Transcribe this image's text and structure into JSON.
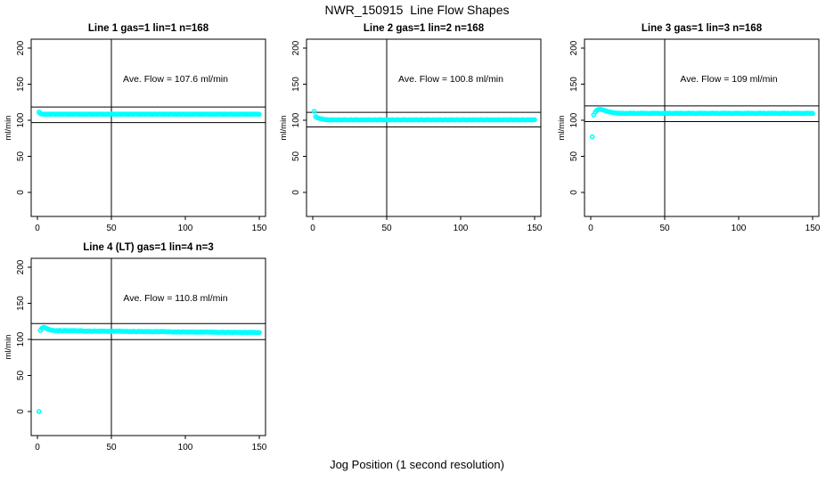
{
  "figure": {
    "title": "NWR_150915  Line Flow Shapes",
    "xlabel": "Jog Position (1 second resolution)",
    "background_color": "#ffffff",
    "axis_color": "#000000"
  },
  "chart_data": {
    "type": "scatter",
    "title": "NWR_150915  Line Flow Shapes",
    "xlabel": "Jog Position (1 second resolution)",
    "ylabel": "ml/min",
    "point_color": "#00FFFF",
    "axis_color": "#000000",
    "xlim": [
      0,
      150
    ],
    "ylim": [
      0,
      200
    ],
    "xticks": [
      0,
      50,
      100,
      150
    ],
    "yticks": [
      0,
      50,
      100,
      150,
      200
    ],
    "grid": false,
    "legend": "none",
    "vline_x": 50,
    "panels": [
      {
        "title": "Line 1 gas=1 lin=1 n=168",
        "annotation": "Ave. Flow =  107.6  ml/min",
        "ave_flow": 107.6,
        "ref_lines": [
          118.4,
          96.8
        ],
        "series": {
          "name": "Line 1 flow",
          "x_start": 1,
          "x_step": 1,
          "y": [
            111.2,
            109.3,
            108.6,
            108.3,
            108.5,
            108.2,
            108.7,
            108.4,
            108.3,
            108.6,
            108.6,
            108.3,
            108.5,
            108.2,
            108.7,
            108.4,
            108.3,
            108.6,
            108.6,
            108.3,
            108.5,
            108.2,
            108.7,
            108.4,
            108.3,
            108.6,
            108.6,
            108.3,
            108.5,
            108.2,
            108.7,
            108.4,
            108.3,
            108.6,
            108.6,
            108.3,
            108.5,
            108.2,
            108.7,
            108.4,
            108.3,
            108.6,
            108.6,
            108.3,
            108.5,
            108.2,
            108.7,
            108.4,
            108.3,
            108.6,
            108.6,
            108.3,
            108.5,
            108.2,
            108.7,
            108.4,
            108.3,
            108.6,
            108.6,
            108.3,
            108.5,
            108.2,
            108.7,
            108.4,
            108.3,
            108.6,
            108.6,
            108.3,
            108.5,
            108.2,
            108.7,
            108.4,
            108.3,
            108.6,
            108.6,
            108.3,
            108.5,
            108.2,
            108.7,
            108.4,
            108.3,
            108.6,
            108.6,
            108.3,
            108.5,
            108.2,
            108.7,
            108.4,
            108.3,
            108.6,
            108.6,
            108.3,
            108.5,
            108.2,
            108.7,
            108.4,
            108.3,
            108.6,
            108.6,
            108.3,
            108.5,
            108.2,
            108.7,
            108.4,
            108.3,
            108.6,
            108.6,
            108.3,
            108.5,
            108.2,
            108.7,
            108.4,
            108.3,
            108.6,
            108.6,
            108.3,
            108.5,
            108.2,
            108.7,
            108.4,
            108.3,
            108.6,
            108.6,
            108.3,
            108.5,
            108.2,
            108.7,
            108.4,
            108.3,
            108.6,
            108.6,
            108.3,
            108.5,
            108.2,
            108.7,
            108.4,
            108.3,
            108.6,
            108.6,
            108.3,
            108.5,
            108.2,
            108.7,
            108.4,
            108.3,
            108.6,
            108.6,
            108.3,
            108.5,
            108.2
          ]
        }
      },
      {
        "title": "Line 2 gas=1 lin=2 n=168",
        "annotation": "Ave. Flow =  100.8  ml/min",
        "ave_flow": 100.8,
        "ref_lines": [
          110.9,
          90.7
        ],
        "series": {
          "name": "Line 2 flow",
          "x_start": 1,
          "x_step": 1,
          "y": [
            112.4,
            105.2,
            103.6,
            102.8,
            102.2,
            101.8,
            101.4,
            101.1,
            100.9,
            100.7,
            100.4,
            100.8,
            100.5,
            100.9,
            100.6,
            100.4,
            100.7,
            100.7,
            100.4,
            100.8,
            100.5,
            100.9,
            100.6,
            100.4,
            100.7,
            100.7,
            100.4,
            100.8,
            100.5,
            100.9,
            100.6,
            100.4,
            100.7,
            100.7,
            100.4,
            100.8,
            100.5,
            100.9,
            100.6,
            100.4,
            100.7,
            100.7,
            100.4,
            100.8,
            100.5,
            100.9,
            100.6,
            100.4,
            100.7,
            100.7,
            100.4,
            100.8,
            100.5,
            100.9,
            100.6,
            100.4,
            100.7,
            100.7,
            100.4,
            100.8,
            100.5,
            100.9,
            100.6,
            100.4,
            100.7,
            100.7,
            100.4,
            100.8,
            100.5,
            100.9,
            100.6,
            100.4,
            100.7,
            100.7,
            100.4,
            100.8,
            100.5,
            100.9,
            100.6,
            100.4,
            100.7,
            100.7,
            100.4,
            100.8,
            100.5,
            100.9,
            100.6,
            100.4,
            100.7,
            100.7,
            100.4,
            100.8,
            100.5,
            100.9,
            100.6,
            100.4,
            100.7,
            100.7,
            100.4,
            100.8,
            100.5,
            100.9,
            100.6,
            100.4,
            100.7,
            100.7,
            100.4,
            100.8,
            100.5,
            100.9,
            100.6,
            100.4,
            100.7,
            100.7,
            100.4,
            100.8,
            100.5,
            100.9,
            100.6,
            100.4,
            100.7,
            100.7,
            100.4,
            100.8,
            100.5,
            100.9,
            100.6,
            100.4,
            100.7,
            100.7,
            100.4,
            100.8,
            100.5,
            100.9,
            100.6,
            100.4,
            100.7,
            100.7,
            100.4,
            100.8,
            100.5,
            100.9,
            100.6,
            100.4,
            100.7,
            100.7,
            100.4,
            100.8,
            100.5,
            100.9
          ]
        }
      },
      {
        "title": "Line 3 gas=1 lin=3 n=168",
        "annotation": "Ave. Flow =  109  ml/min",
        "ave_flow": 109,
        "ref_lines": [
          119.9,
          98.1
        ],
        "series": {
          "name": "Line 3 flow",
          "x_start": 1,
          "x_step": 1,
          "y": [
            77.2,
            107.4,
            111.2,
            113.6,
            114.8,
            115.1,
            114.9,
            114.4,
            113.8,
            113.1,
            112.5,
            111.9,
            111.4,
            111.0,
            110.6,
            110.3,
            110.1,
            109.9,
            109.7,
            109.4,
            109.8,
            109.5,
            109.3,
            109.6,
            109.4,
            109.7,
            109.7,
            109.4,
            109.8,
            109.5,
            109.3,
            109.6,
            109.4,
            109.7,
            109.7,
            109.4,
            109.8,
            109.5,
            109.3,
            109.6,
            109.4,
            109.7,
            109.7,
            109.4,
            109.8,
            109.5,
            109.3,
            109.6,
            109.4,
            109.7,
            109.7,
            109.4,
            109.8,
            109.5,
            109.3,
            109.6,
            109.4,
            109.7,
            109.7,
            109.4,
            109.8,
            109.5,
            109.3,
            109.6,
            109.4,
            109.7,
            109.7,
            109.4,
            109.8,
            109.5,
            109.3,
            109.6,
            109.4,
            109.7,
            109.7,
            109.4,
            109.8,
            109.5,
            109.3,
            109.6,
            109.4,
            109.7,
            109.7,
            109.4,
            109.8,
            109.5,
            109.3,
            109.6,
            109.4,
            109.7,
            109.7,
            109.4,
            109.8,
            109.5,
            109.3,
            109.6,
            109.4,
            109.7,
            109.7,
            109.4,
            109.8,
            109.5,
            109.3,
            109.6,
            109.4,
            109.7,
            109.7,
            109.4,
            109.8,
            109.5,
            109.3,
            109.6,
            109.4,
            109.7,
            109.7,
            109.4,
            109.8,
            109.5,
            109.3,
            109.6,
            109.4,
            109.7,
            109.7,
            109.4,
            109.8,
            109.5,
            109.3,
            109.6,
            109.4,
            109.7,
            109.7,
            109.4,
            109.8,
            109.5,
            109.3,
            109.6,
            109.4,
            109.7,
            109.7,
            109.4,
            109.8,
            109.5,
            109.3,
            109.6,
            109.4,
            109.7,
            109.7,
            109.4,
            109.8,
            109.5
          ]
        }
      },
      {
        "title": "Line 4 (LT) gas=1 lin=4 n=3",
        "annotation": "Ave. Flow =  110.8  ml/min",
        "ave_flow": 110.8,
        "ref_lines": [
          121.9,
          99.7
        ],
        "series": {
          "name": "Line 4 flow",
          "x_start": 1,
          "x_step": 1,
          "y": [
            0,
            112.3,
            115.4,
            116.6,
            116.2,
            115.3,
            114.4,
            113.6,
            113.0,
            112.6,
            112.4,
            111.8,
            112.3,
            111.9,
            112.5,
            112.0,
            111.7,
            112.2,
            112.4,
            111.8,
            112.1,
            111.7,
            112.3,
            111.9,
            112.2,
            111.8,
            112.0,
            111.6,
            112.1,
            111.8,
            111.6,
            111.1,
            111.5,
            111.2,
            111.7,
            111.3,
            111.0,
            111.5,
            111.6,
            111.2,
            111.4,
            111.0,
            111.6,
            111.2,
            111.5,
            111.1,
            111.3,
            110.9,
            111.4,
            111.1,
            111.5,
            111.0,
            111.4,
            111.2,
            111.6,
            111.1,
            111.3,
            110.9,
            111.2,
            111.0,
            111.1,
            110.6,
            111.0,
            110.7,
            111.2,
            110.8,
            110.5,
            111.0,
            111.1,
            110.7,
            110.9,
            110.5,
            111.1,
            110.7,
            111.0,
            110.6,
            110.8,
            110.4,
            110.9,
            110.6,
            111.0,
            110.5,
            110.9,
            110.7,
            111.1,
            110.6,
            110.8,
            110.4,
            110.7,
            110.5,
            110.5,
            110.0,
            110.4,
            110.1,
            110.6,
            110.2,
            109.9,
            110.4,
            110.5,
            110.1,
            110.3,
            109.9,
            110.5,
            110.1,
            110.4,
            110.0,
            110.2,
            109.8,
            110.3,
            110.0,
            110.4,
            109.9,
            110.3,
            110.1,
            110.5,
            110.0,
            110.2,
            109.8,
            110.1,
            109.9,
            110.0,
            109.5,
            109.9,
            109.6,
            110.1,
            109.7,
            109.4,
            109.9,
            110.0,
            109.6,
            109.8,
            109.4,
            110.0,
            109.6,
            109.9,
            109.5,
            109.7,
            109.3,
            109.8,
            109.5,
            109.9,
            109.4,
            109.8,
            109.6,
            110.0,
            109.5,
            109.7,
            109.3,
            109.6,
            109.4
          ]
        }
      }
    ]
  }
}
